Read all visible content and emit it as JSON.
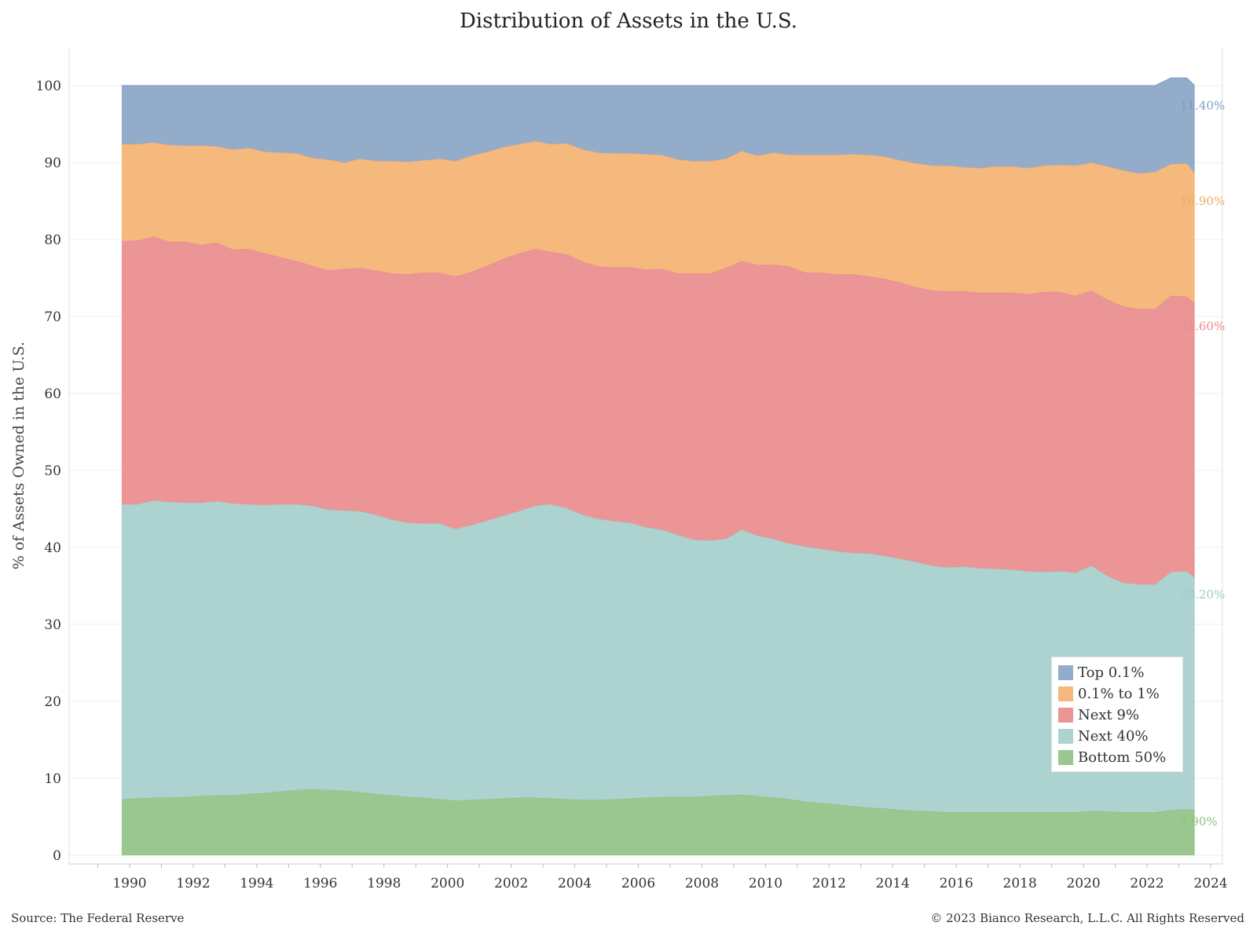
{
  "footer": {
    "source": "Source: The Federal Reserve",
    "copyright": "© 2023 Bianco Research, L.L.C. All Rights Reserved"
  },
  "chart_data": {
    "type": "area",
    "stacked": true,
    "title": "Distribution of Assets in the U.S.",
    "ylabel": "% of Assets Owned in the U.S.",
    "xlabel": "",
    "ylim": [
      0,
      100
    ],
    "xlim": [
      1989.5,
      2024.7
    ],
    "y_ticks": [
      0,
      10,
      20,
      30,
      40,
      50,
      60,
      70,
      80,
      90,
      100
    ],
    "x_ticks": [
      "1990",
      "1992",
      "1994",
      "1996",
      "1998",
      "2000",
      "2002",
      "2004",
      "2006",
      "2008",
      "2010",
      "2012",
      "2014",
      "2016",
      "2018",
      "2020",
      "2022",
      "2024"
    ],
    "grid": true,
    "legend_position": "bottom-right",
    "x": [
      1989.75,
      1990.25,
      1990.75,
      1991.25,
      1991.75,
      1992.25,
      1992.75,
      1993.25,
      1993.75,
      1994.25,
      1994.75,
      1995.25,
      1995.75,
      1996.25,
      1996.75,
      1997.25,
      1997.75,
      1998.25,
      1998.75,
      1999.25,
      1999.75,
      2000.25,
      2000.75,
      2001.25,
      2001.75,
      2002.25,
      2002.75,
      2003.25,
      2003.75,
      2004.25,
      2004.75,
      2005.25,
      2005.75,
      2006.25,
      2006.75,
      2007.25,
      2007.75,
      2008.25,
      2008.75,
      2009.25,
      2009.75,
      2010.25,
      2010.75,
      2011.25,
      2011.75,
      2012.25,
      2012.75,
      2013.25,
      2013.75,
      2014.25,
      2014.75,
      2015.25,
      2015.75,
      2016.25,
      2016.75,
      2017.25,
      2017.75,
      2018.25,
      2018.75,
      2019.25,
      2019.75,
      2020.25,
      2020.75,
      2021.25,
      2021.75,
      2022.25,
      2022.75,
      2023.25,
      2023.5
    ],
    "series": [
      {
        "name": "Bottom 50%",
        "color": "#8fbf7f",
        "fill": "#9ac78f",
        "end_label": "5.90%",
        "values": [
          7.3,
          7.4,
          7.5,
          7.5,
          7.6,
          7.7,
          7.8,
          7.8,
          8.0,
          8.1,
          8.3,
          8.5,
          8.6,
          8.5,
          8.4,
          8.2,
          8.0,
          7.8,
          7.6,
          7.5,
          7.3,
          7.1,
          7.2,
          7.3,
          7.4,
          7.5,
          7.5,
          7.4,
          7.3,
          7.2,
          7.2,
          7.3,
          7.4,
          7.5,
          7.6,
          7.6,
          7.6,
          7.7,
          7.8,
          7.9,
          7.7,
          7.5,
          7.3,
          7.0,
          6.8,
          6.6,
          6.4,
          6.2,
          6.1,
          5.9,
          5.8,
          5.7,
          5.6,
          5.6,
          5.6,
          5.6,
          5.6,
          5.6,
          5.6,
          5.6,
          5.6,
          5.8,
          5.7,
          5.6,
          5.6,
          5.6,
          5.9,
          6.0,
          5.9
        ]
      },
      {
        "name": "Next 40%",
        "color": "#9ecbc8",
        "fill": "#acd3d0",
        "end_label": "30.20%",
        "values": [
          38.3,
          38.2,
          38.6,
          38.4,
          38.2,
          38.1,
          38.2,
          37.9,
          37.6,
          37.4,
          37.3,
          37.1,
          36.8,
          36.4,
          36.4,
          36.5,
          36.2,
          35.8,
          35.6,
          35.6,
          35.8,
          35.3,
          35.7,
          36.2,
          36.7,
          37.2,
          37.9,
          38.2,
          37.8,
          37.0,
          36.5,
          36.1,
          35.8,
          35.1,
          34.7,
          34.0,
          33.4,
          33.2,
          33.3,
          34.4,
          33.8,
          33.6,
          33.2,
          33.1,
          33.0,
          32.9,
          32.9,
          33.0,
          32.8,
          32.6,
          32.3,
          31.9,
          31.8,
          31.9,
          31.7,
          31.6,
          31.5,
          31.3,
          31.2,
          31.3,
          31.1,
          31.8,
          30.6,
          29.8,
          29.6,
          29.6,
          30.9,
          30.9,
          30.2
        ]
      },
      {
        "name": "Next 9%",
        "color": "#e88a8d",
        "fill": "#eb9597",
        "end_label": "35.60%",
        "values": [
          34.2,
          34.3,
          34.3,
          33.8,
          33.9,
          33.5,
          33.6,
          33.0,
          33.2,
          32.7,
          32.1,
          31.6,
          31.2,
          31.1,
          31.4,
          31.6,
          31.8,
          32.0,
          32.3,
          32.6,
          32.6,
          32.8,
          32.9,
          33.1,
          33.4,
          33.5,
          33.4,
          32.8,
          33.0,
          32.9,
          32.8,
          33.0,
          33.2,
          33.5,
          33.9,
          34.0,
          34.6,
          34.7,
          35.2,
          34.9,
          35.2,
          35.6,
          36.0,
          35.6,
          35.9,
          36.0,
          36.2,
          36.0,
          36.0,
          35.9,
          35.7,
          35.8,
          35.9,
          35.8,
          35.8,
          35.9,
          36.0,
          36.0,
          36.4,
          36.3,
          36.0,
          35.8,
          35.9,
          35.9,
          35.8,
          35.8,
          35.9,
          35.7,
          35.6
        ]
      },
      {
        "name": "0.1% to 1%",
        "color": "#f2a96a",
        "fill": "#f5b87d",
        "end_label": "16.90%",
        "values": [
          12.6,
          12.5,
          12.2,
          12.6,
          12.5,
          12.9,
          12.5,
          13.0,
          13.1,
          13.2,
          13.6,
          14.0,
          14.0,
          14.4,
          13.8,
          14.2,
          14.2,
          14.6,
          14.6,
          14.6,
          14.8,
          15.0,
          15.1,
          14.8,
          14.5,
          14.2,
          14.0,
          14.0,
          14.4,
          14.6,
          14.8,
          14.8,
          14.8,
          15.0,
          14.8,
          14.8,
          14.6,
          14.6,
          14.2,
          14.3,
          14.2,
          14.6,
          14.5,
          15.3,
          15.3,
          15.5,
          15.6,
          15.8,
          15.9,
          15.9,
          16.1,
          16.2,
          16.3,
          16.1,
          16.2,
          16.4,
          16.4,
          16.4,
          16.4,
          16.5,
          16.9,
          16.6,
          17.3,
          17.7,
          17.6,
          17.8,
          17.1,
          17.3,
          16.9
        ]
      },
      {
        "name": "Top 0.1%",
        "color": "#7b9cc4",
        "fill": "#92acc9",
        "end_label": "11.40%",
        "values": [
          7.6,
          7.6,
          7.4,
          7.7,
          7.8,
          7.8,
          7.9,
          8.3,
          8.1,
          8.6,
          8.7,
          8.8,
          9.4,
          9.6,
          10.0,
          9.5,
          9.8,
          9.8,
          9.9,
          9.7,
          9.5,
          9.8,
          9.1,
          8.6,
          8.0,
          7.6,
          7.2,
          7.6,
          7.5,
          8.3,
          8.7,
          8.8,
          8.8,
          8.9,
          9.0,
          9.6,
          9.8,
          9.8,
          9.5,
          8.5,
          9.1,
          8.7,
          9.0,
          9.0,
          9.0,
          9.0,
          8.9,
          9.0,
          9.2,
          9.7,
          10.1,
          10.4,
          10.4,
          10.6,
          10.7,
          10.5,
          10.5,
          10.7,
          10.4,
          10.3,
          10.4,
          10.0,
          10.5,
          11.0,
          11.4,
          11.2,
          11.2,
          11.1,
          11.4
        ]
      }
    ]
  }
}
